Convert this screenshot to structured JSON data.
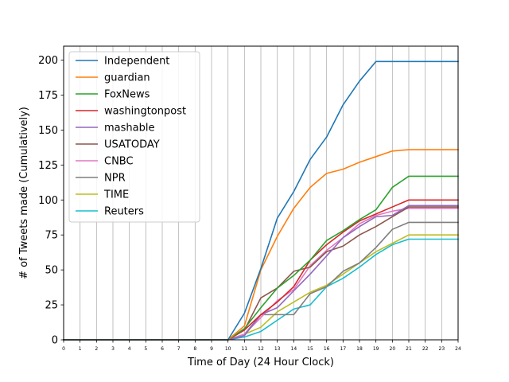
{
  "chart_data": {
    "type": "line",
    "title": "",
    "xlabel": "Time of Day (24 Hour Clock)",
    "ylabel": "# of Tweets made (Cumulatively)",
    "xlim": [
      0,
      24
    ],
    "ylim": [
      0,
      210
    ],
    "x": [
      0,
      1,
      2,
      3,
      4,
      5,
      6,
      7,
      8,
      9,
      10,
      11,
      12,
      13,
      14,
      15,
      16,
      17,
      18,
      19,
      20,
      21,
      22,
      23,
      24
    ],
    "xticks": [
      "0",
      "1",
      "2",
      "3",
      "4",
      "5",
      "6",
      "7",
      "8",
      "9",
      "10",
      "11",
      "12",
      "13",
      "14",
      "15",
      "16",
      "17",
      "18",
      "19",
      "20",
      "21",
      "22",
      "23",
      "24"
    ],
    "yticks": [
      0,
      25,
      50,
      75,
      100,
      125,
      150,
      175,
      200
    ],
    "grid": "vertical",
    "legend_position": "top-left",
    "series": [
      {
        "name": "Independent",
        "color": "#1f77b4",
        "values": [
          0,
          0,
          0,
          0,
          0,
          0,
          0,
          0,
          0,
          0,
          0,
          19,
          51,
          87,
          106,
          129,
          145,
          168,
          185,
          199,
          199,
          199,
          199,
          199,
          199
        ]
      },
      {
        "name": "guardian",
        "color": "#ff7f0e",
        "values": [
          0,
          0,
          0,
          0,
          0,
          0,
          0,
          0,
          0,
          0,
          0,
          10,
          50,
          74,
          94,
          109,
          119,
          122,
          127,
          131,
          135,
          136,
          136,
          136,
          136
        ]
      },
      {
        "name": "FoxNews",
        "color": "#2ca02c",
        "values": [
          0,
          0,
          0,
          0,
          0,
          0,
          0,
          0,
          0,
          0,
          0,
          8,
          23,
          37,
          46,
          57,
          71,
          78,
          86,
          93,
          109,
          117,
          117,
          117,
          117
        ]
      },
      {
        "name": "washingtonpost",
        "color": "#d62728",
        "values": [
          0,
          0,
          0,
          0,
          0,
          0,
          0,
          0,
          0,
          0,
          0,
          7,
          18,
          27,
          38,
          57,
          68,
          77,
          85,
          90,
          95,
          100,
          100,
          100,
          100
        ]
      },
      {
        "name": "mashable",
        "color": "#9467bd",
        "values": [
          0,
          0,
          0,
          0,
          0,
          0,
          0,
          0,
          0,
          0,
          0,
          3,
          18,
          23,
          35,
          47,
          60,
          73,
          81,
          88,
          89,
          96,
          96,
          96,
          96
        ]
      },
      {
        "name": "USATODAY",
        "color": "#8c564b",
        "values": [
          0,
          0,
          0,
          0,
          0,
          0,
          0,
          0,
          0,
          0,
          0,
          7,
          30,
          37,
          49,
          52,
          63,
          67,
          75,
          81,
          88,
          95,
          95,
          95,
          95
        ]
      },
      {
        "name": "CNBC",
        "color": "#e377c2",
        "values": [
          0,
          0,
          0,
          0,
          0,
          0,
          0,
          0,
          0,
          0,
          0,
          4,
          16,
          28,
          36,
          53,
          64,
          73,
          83,
          89,
          92,
          94,
          94,
          94,
          94
        ]
      },
      {
        "name": "NPR",
        "color": "#7f7f7f",
        "values": [
          0,
          0,
          0,
          0,
          0,
          0,
          0,
          0,
          0,
          0,
          0,
          4,
          18,
          18,
          18,
          33,
          38,
          49,
          55,
          66,
          79,
          84,
          84,
          84,
          84
        ]
      },
      {
        "name": "TIME",
        "color": "#bcbd22",
        "values": [
          0,
          0,
          0,
          0,
          0,
          0,
          0,
          0,
          0,
          0,
          0,
          4,
          9,
          20,
          27,
          34,
          39,
          47,
          55,
          63,
          69,
          75,
          75,
          75,
          75
        ]
      },
      {
        "name": "Reuters",
        "color": "#17becf",
        "values": [
          0,
          0,
          0,
          0,
          0,
          0,
          0,
          0,
          0,
          0,
          0,
          2,
          6,
          14,
          22,
          25,
          38,
          44,
          52,
          61,
          68,
          72,
          72,
          72,
          72
        ]
      }
    ]
  }
}
